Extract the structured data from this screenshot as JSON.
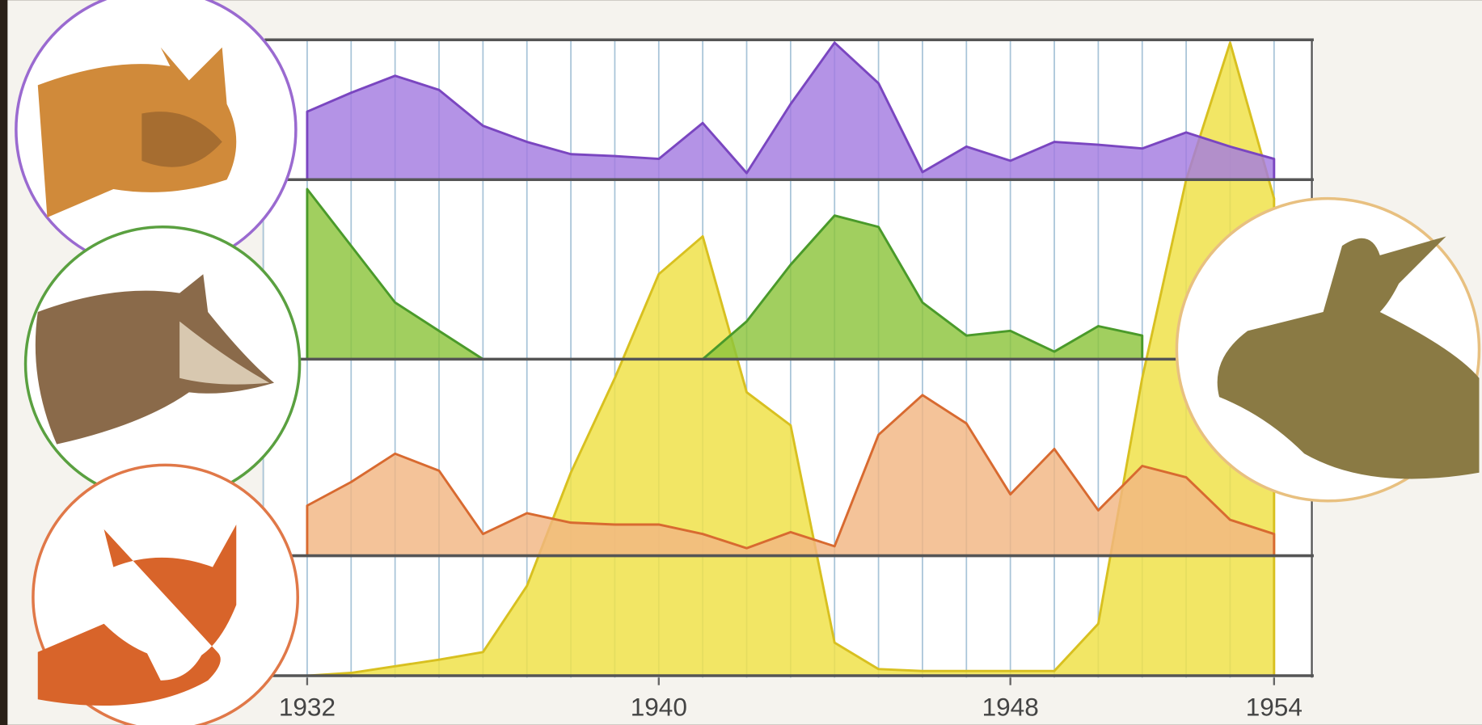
{
  "chart_data": {
    "type": "area",
    "x": [
      1932,
      1933,
      1934,
      1935,
      1936,
      1937,
      1938,
      1939,
      1940,
      1941,
      1942,
      1943,
      1944,
      1945,
      1946,
      1947,
      1948,
      1949,
      1950,
      1951,
      1952,
      1953,
      1954
    ],
    "xlim": [
      1931,
      1955
    ],
    "xticks": [
      1932,
      1940,
      1948,
      1954
    ],
    "grid": true,
    "series": [
      {
        "color": "#a47be0",
        "values": [
          72,
          92,
          110,
          95,
          57,
          40,
          27,
          25,
          22,
          60,
          7,
          80,
          145,
          102,
          8,
          35,
          20,
          40,
          37,
          33,
          50,
          35,
          22
        ]
      },
      {
        "color": "#8cc43c",
        "values": [
          180,
          120,
          60,
          30,
          0,
          0,
          0,
          0,
          0,
          0,
          40,
          100,
          152,
          140,
          60,
          25,
          30,
          8,
          35,
          25,
          null,
          null,
          null
        ]
      },
      {
        "color": "#f2b682",
        "values": [
          53,
          78,
          108,
          90,
          23,
          45,
          35,
          33,
          33,
          23,
          8,
          25,
          10,
          128,
          170,
          140,
          65,
          113,
          48,
          95,
          83,
          38,
          23
        ]
      },
      {
        "color": "#f0e24a",
        "values": [
          0,
          3,
          10,
          17,
          25,
          95,
          215,
          315,
          425,
          465,
          300,
          265,
          35,
          7,
          5,
          5,
          5,
          5,
          55,
          315,
          525,
          670,
          505
        ]
      }
    ]
  }
}
